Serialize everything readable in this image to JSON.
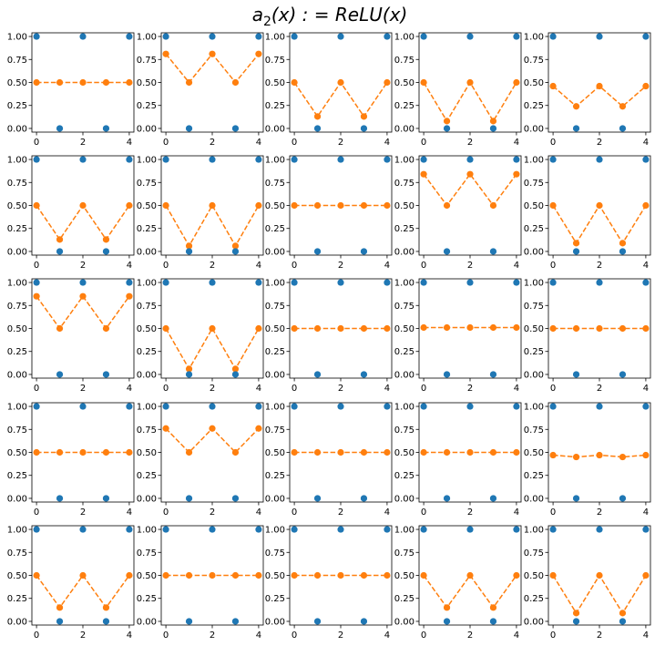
{
  "figure": {
    "title_parts": [
      {
        "text": "a",
        "style": "italic"
      },
      {
        "text": "2",
        "style": "sub"
      },
      {
        "text": "(x) : = ReLU(x)",
        "style": "italic"
      }
    ]
  },
  "colors": {
    "targets": "#1f77b4",
    "outputs": "#ff7f0e",
    "axes": "#000000"
  },
  "chart_data": {
    "type": "scatter-line-grid",
    "rows": 5,
    "cols": 5,
    "x": [
      0,
      1,
      2,
      3,
      4
    ],
    "xticks": [
      "0",
      "2",
      "4"
    ],
    "yticks": [
      "0.00",
      "0.25",
      "0.50",
      "0.75",
      "1.00"
    ],
    "ylim": [
      -0.04,
      1.04
    ],
    "xlim": [
      -0.2,
      4.2
    ],
    "grid": false,
    "legend": "none",
    "target_series": {
      "marker": "o",
      "linestyle": "none",
      "values": [
        1,
        0,
        1,
        0,
        1
      ]
    },
    "panels": [
      {
        "outputs": [
          0.5,
          0.5,
          0.5,
          0.5,
          0.5
        ]
      },
      {
        "outputs": [
          0.81,
          0.5,
          0.81,
          0.5,
          0.81
        ]
      },
      {
        "outputs": [
          0.5,
          0.13,
          0.5,
          0.13,
          0.5
        ]
      },
      {
        "outputs": [
          0.5,
          0.08,
          0.5,
          0.08,
          0.5
        ]
      },
      {
        "outputs": [
          0.46,
          0.24,
          0.46,
          0.24,
          0.46
        ]
      },
      {
        "outputs": [
          0.5,
          0.13,
          0.5,
          0.13,
          0.5
        ]
      },
      {
        "outputs": [
          0.5,
          0.06,
          0.5,
          0.06,
          0.5
        ]
      },
      {
        "outputs": [
          0.5,
          0.5,
          0.5,
          0.5,
          0.5
        ]
      },
      {
        "outputs": [
          0.84,
          0.5,
          0.84,
          0.5,
          0.84
        ]
      },
      {
        "outputs": [
          0.5,
          0.09,
          0.5,
          0.09,
          0.5
        ]
      },
      {
        "outputs": [
          0.85,
          0.5,
          0.85,
          0.5,
          0.85
        ]
      },
      {
        "outputs": [
          0.5,
          0.06,
          0.5,
          0.06,
          0.5
        ]
      },
      {
        "outputs": [
          0.5,
          0.5,
          0.5,
          0.5,
          0.5
        ]
      },
      {
        "outputs": [
          0.51,
          0.51,
          0.51,
          0.51,
          0.51
        ]
      },
      {
        "outputs": [
          0.5,
          0.5,
          0.5,
          0.5,
          0.5
        ]
      },
      {
        "outputs": [
          0.5,
          0.5,
          0.5,
          0.5,
          0.5
        ]
      },
      {
        "outputs": [
          0.76,
          0.5,
          0.76,
          0.5,
          0.76
        ]
      },
      {
        "outputs": [
          0.5,
          0.5,
          0.5,
          0.5,
          0.5
        ]
      },
      {
        "outputs": [
          0.5,
          0.5,
          0.5,
          0.5,
          0.5
        ]
      },
      {
        "outputs": [
          0.47,
          0.45,
          0.47,
          0.45,
          0.47
        ]
      },
      {
        "outputs": [
          0.5,
          0.15,
          0.5,
          0.15,
          0.5
        ]
      },
      {
        "outputs": [
          0.5,
          0.5,
          0.5,
          0.5,
          0.5
        ]
      },
      {
        "outputs": [
          0.5,
          0.5,
          0.5,
          0.5,
          0.5
        ]
      },
      {
        "outputs": [
          0.5,
          0.15,
          0.5,
          0.15,
          0.5
        ]
      },
      {
        "outputs": [
          0.5,
          0.09,
          0.5,
          0.09,
          0.5
        ]
      }
    ]
  }
}
